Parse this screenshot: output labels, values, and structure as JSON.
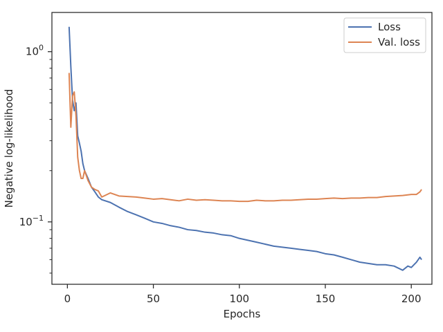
{
  "chart_data": {
    "type": "line",
    "title": "",
    "xlabel": "Epochs",
    "ylabel": "Negative log-likelihood",
    "xlim": [
      -9,
      212
    ],
    "ylim": [
      0.043,
      1.7
    ],
    "yscale": "log",
    "grid": false,
    "legend_position": "top-right",
    "x_ticks": [
      0,
      50,
      100,
      150,
      200
    ],
    "y_ticks": [
      {
        "value": 1,
        "base": "10",
        "exp": "0"
      },
      {
        "value": 0.1,
        "base": "10",
        "exp": "−1"
      }
    ],
    "series": [
      {
        "name": "Loss",
        "color": "#4c72b0",
        "x": [
          1,
          2,
          3,
          4,
          5,
          6,
          7,
          8,
          9,
          10,
          12,
          14,
          16,
          18,
          20,
          25,
          30,
          35,
          40,
          45,
          50,
          55,
          60,
          65,
          70,
          75,
          80,
          85,
          90,
          95,
          100,
          105,
          110,
          115,
          120,
          125,
          130,
          135,
          140,
          145,
          150,
          155,
          160,
          165,
          170,
          175,
          180,
          185,
          190,
          195,
          198,
          200,
          203,
          205,
          206
        ],
        "values": [
          1.4,
          0.82,
          0.52,
          0.45,
          0.5,
          0.32,
          0.29,
          0.26,
          0.22,
          0.2,
          0.18,
          0.16,
          0.15,
          0.14,
          0.135,
          0.13,
          0.122,
          0.115,
          0.11,
          0.105,
          0.1,
          0.098,
          0.095,
          0.093,
          0.09,
          0.089,
          0.087,
          0.086,
          0.084,
          0.083,
          0.08,
          0.078,
          0.076,
          0.074,
          0.072,
          0.071,
          0.07,
          0.069,
          0.068,
          0.067,
          0.065,
          0.064,
          0.062,
          0.06,
          0.058,
          0.057,
          0.056,
          0.056,
          0.055,
          0.052,
          0.055,
          0.054,
          0.058,
          0.062,
          0.06
        ]
      },
      {
        "name": "Val. loss",
        "color": "#dd8452",
        "x": [
          1,
          2,
          3,
          4,
          5,
          6,
          7,
          8,
          9,
          10,
          12,
          14,
          16,
          18,
          20,
          25,
          30,
          35,
          40,
          45,
          50,
          55,
          60,
          65,
          70,
          75,
          80,
          85,
          90,
          95,
          100,
          105,
          110,
          115,
          120,
          125,
          130,
          135,
          140,
          145,
          150,
          155,
          160,
          165,
          170,
          175,
          180,
          185,
          190,
          195,
          200,
          203,
          205,
          206
        ],
        "values": [
          0.75,
          0.36,
          0.55,
          0.58,
          0.42,
          0.24,
          0.2,
          0.18,
          0.18,
          0.2,
          0.175,
          0.16,
          0.155,
          0.152,
          0.14,
          0.148,
          0.142,
          0.141,
          0.14,
          0.138,
          0.136,
          0.137,
          0.135,
          0.133,
          0.136,
          0.134,
          0.135,
          0.134,
          0.133,
          0.133,
          0.132,
          0.132,
          0.134,
          0.133,
          0.133,
          0.134,
          0.134,
          0.135,
          0.136,
          0.136,
          0.137,
          0.138,
          0.137,
          0.138,
          0.138,
          0.139,
          0.139,
          0.141,
          0.142,
          0.143,
          0.145,
          0.145,
          0.15,
          0.155
        ]
      }
    ]
  }
}
